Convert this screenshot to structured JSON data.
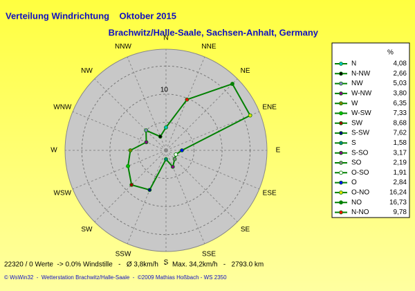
{
  "chart_data": {
    "type": "windrose",
    "title": "Verteilung Windrichtung    Oktober 2015",
    "subtitle": "Brachwitz/Halle-Saale, Sachsen-Anhalt, Germany",
    "direction_labels": [
      "N",
      "NNE",
      "NE",
      "ENE",
      "E",
      "ESE",
      "SE",
      "SSE",
      "S",
      "SSW",
      "SW",
      "WSW",
      "W",
      "WNW",
      "NW",
      "NNW"
    ],
    "legend_header": "%",
    "line_color": "#008000",
    "series": [
      {
        "name": "N",
        "color": "#00c0c0",
        "value": 4.08,
        "value_label": "4,08"
      },
      {
        "name": "N-NW",
        "color": "#000000",
        "value": 2.66,
        "value_label": "2,66"
      },
      {
        "name": "NW",
        "color": "#8080c0",
        "value": 5.03,
        "value_label": "5,03"
      },
      {
        "name": "W-NW",
        "color": "#800080",
        "value": 3.8,
        "value_label": "3,80"
      },
      {
        "name": "W",
        "color": "#808000",
        "value": 6.35,
        "value_label": "6,35"
      },
      {
        "name": "W-SW",
        "color": "#00c000",
        "value": 7.33,
        "value_label": "7,33"
      },
      {
        "name": "SW",
        "color": "#a00000",
        "value": 8.68,
        "value_label": "8,68"
      },
      {
        "name": "S-SW",
        "color": "#000080",
        "value": 7.62,
        "value_label": "7,62"
      },
      {
        "name": "S",
        "color": "#008080",
        "value": 1.58,
        "value_label": "1,58"
      },
      {
        "name": "S-SO",
        "color": "#800080",
        "value": 3.17,
        "value_label": "3,17"
      },
      {
        "name": "SO",
        "color": "#808080",
        "value": 2.19,
        "value_label": "2,19"
      },
      {
        "name": "O-SO",
        "color": "#ffffff",
        "value": 1.91,
        "value_label": "1,91"
      },
      {
        "name": "O",
        "color": "#0000ff",
        "value": 2.84,
        "value_label": "2,84"
      },
      {
        "name": "O-NO",
        "color": "#e0e000",
        "value": 16.24,
        "value_label": "16,24"
      },
      {
        "name": "NO",
        "color": "#008000",
        "value": 16.73,
        "value_label": "16,73"
      },
      {
        "name": "N-NO",
        "color": "#ff0000",
        "value": 9.78,
        "value_label": "9,78"
      }
    ],
    "rlim": [
      0,
      18
    ],
    "rgrid": [
      5,
      10,
      15
    ],
    "rlabels": [
      10
    ],
    "footer": "22320 / 0 Werte  -> 0.0% Windstille   -   Ø 3,8km/h   -   Max. 34,2km/h   -   2793.0 km",
    "credits": "© WsWin32  -  Wetterstation Brachwitz/Halle-Saale  -  ©2009 Mathias Hoßbach - WS 2350"
  }
}
